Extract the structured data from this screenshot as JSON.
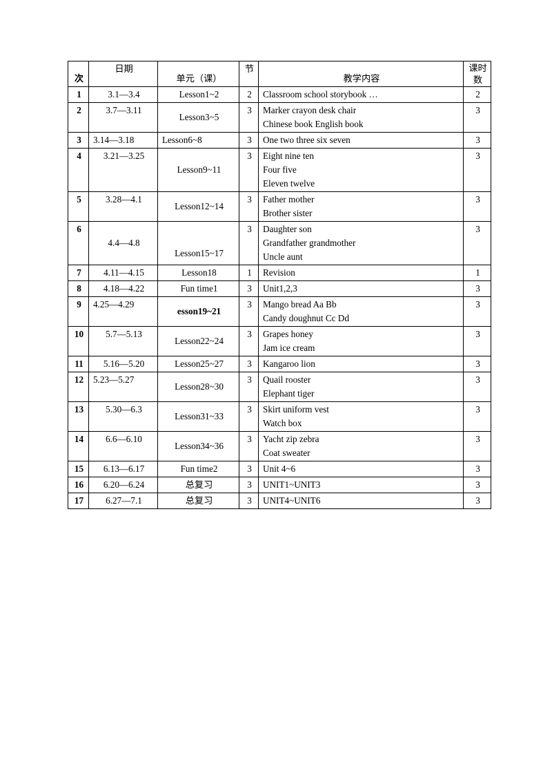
{
  "headers": {
    "num": "次",
    "date": "日期",
    "unit": "单元（课）",
    "section": "节",
    "content": "教学内容",
    "hours": "课时数"
  },
  "rows": [
    {
      "n": "1",
      "date": "3.1—3.4",
      "unit": "Lesson1~2",
      "sec": "2",
      "content": "Classroom school storybook …",
      "hours": "2"
    },
    {
      "n": "2",
      "date": "3.7—3.11",
      "unit": "Lesson3~5",
      "sec": "3",
      "content": "Marker crayon desk chair\nChinese book English book",
      "hours": "3"
    },
    {
      "n": "3",
      "date": "3.14—3.18",
      "unit": "Lesson6~8",
      "sec": "3",
      "content": "One two three six seven",
      "hours": "3",
      "dateLeft": true,
      "unitLeft": true
    },
    {
      "n": "4",
      "date": "3.21—3.25",
      "unit": "Lesson9~11",
      "sec": "3",
      "content": "Eight nine ten\nFour five\nEleven twelve",
      "hours": "3"
    },
    {
      "n": "5",
      "date": "3.28—4.1",
      "unit": "Lesson12~14",
      "sec": "3",
      "content": "Father mother\nBrother sister",
      "hours": "3"
    },
    {
      "n": "6",
      "date": "4.4—4.8",
      "unit": "Lesson15~17",
      "sec": "3",
      "content": "Daughter son\nGrandfather grandmother\nUncle aunt",
      "hours": "3",
      "unitBottom": true,
      "dateMid": true
    },
    {
      "n": "7",
      "date": "4.11—4.15",
      "unit": "Lesson18",
      "sec": "1",
      "content": "Revision",
      "hours": "1"
    },
    {
      "n": "8",
      "date": "4.18—4.22",
      "unit": "Fun time1",
      "sec": "3",
      "content": "Unit1,2,3",
      "hours": "3"
    },
    {
      "n": "9",
      "date": "4.25—4.29",
      "unit": "esson19~21",
      "sec": "3",
      "content": "Mango bread Aa Bb\nCandy doughnut   Cc Dd\n ",
      "hours": "3",
      "dateLeft": true,
      "unitBold": true,
      "unitMid": true
    },
    {
      "n": "10",
      "date": "5.7—5.13",
      "unit": "Lesson22~24",
      "sec": "3",
      "content": "Grapes honey\nJam ice cream",
      "hours": "3"
    },
    {
      "n": "11",
      "date": "5.16—5.20",
      "unit": "Lesson25~27",
      "sec": "3",
      "content": "Kangaroo lion",
      "hours": "3"
    },
    {
      "n": "12",
      "date": "5.23—5.27",
      "unit": "Lesson28~30",
      "sec": "3",
      "content": "Quail rooster\nElephant tiger",
      "hours": "3",
      "dateLeft": true
    },
    {
      "n": "13",
      "date": "5.30—6.3",
      "unit": "Lesson31~33",
      "sec": "3",
      "content": "Skirt uniform vest\nWatch box",
      "hours": "3"
    },
    {
      "n": "14",
      "date": "6.6—6.10",
      "unit": "Lesson34~36",
      "sec": "3",
      "content": "Yacht zip zebra\nCoat sweater",
      "hours": "3"
    },
    {
      "n": "15",
      "date": "6.13—6.17",
      "unit": "Fun time2",
      "sec": "3",
      "content": "Unit 4~6",
      "hours": "3"
    },
    {
      "n": "16",
      "date": "6.20—6.24",
      "unit": "总复习",
      "sec": "3",
      "content": "UNIT1~UNIT3",
      "hours": "3"
    },
    {
      "n": "17",
      "date": "6.27—7.1",
      "unit": "总复习",
      "sec": "3",
      "content": "UNIT4~UNIT6",
      "hours": "3"
    }
  ]
}
